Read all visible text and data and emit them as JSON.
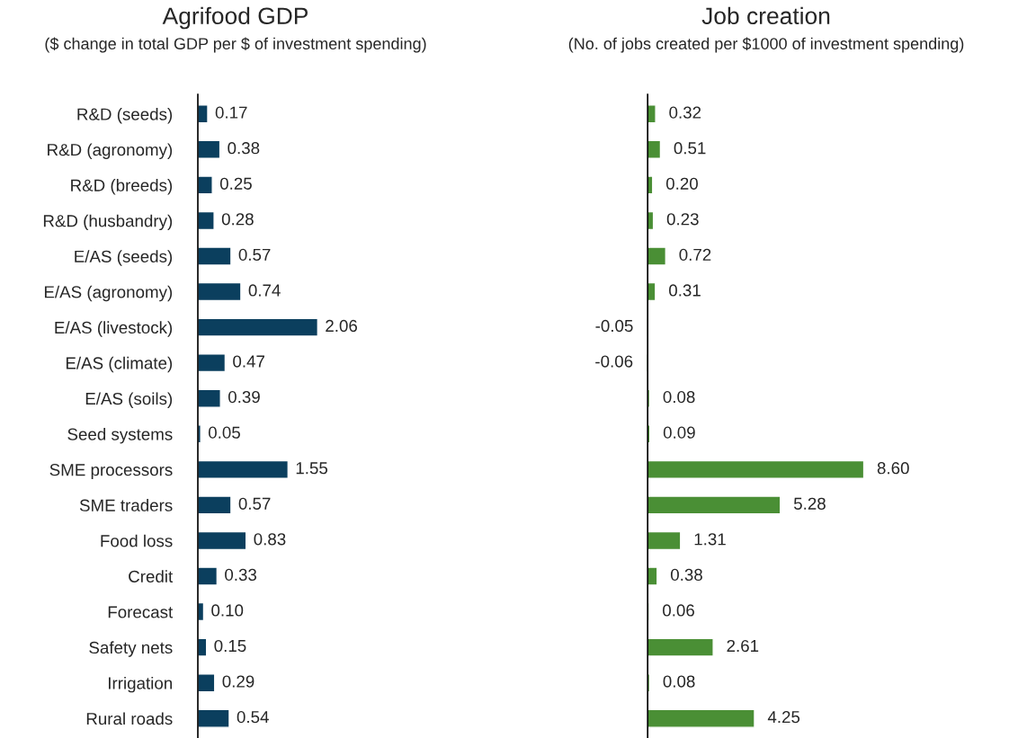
{
  "chart_data": [
    {
      "type": "bar",
      "orientation": "horizontal",
      "title": "Agrifood GDP",
      "subtitle": "($ change in total GDP per $ of investment spending)",
      "categories": [
        "R&D (seeds)",
        "R&D (agronomy)",
        "R&D (breeds)",
        "R&D (husbandry)",
        "E/AS (seeds)",
        "E/AS (agronomy)",
        "E/AS (livestock)",
        "E/AS (climate)",
        "E/AS (soils)",
        "Seed systems",
        "SME processors",
        "SME traders",
        "Food loss",
        "Credit",
        "Forecast",
        "Safety nets",
        "Irrigation",
        "Rural roads"
      ],
      "values": [
        0.17,
        0.38,
        0.25,
        0.28,
        0.57,
        0.74,
        2.06,
        0.47,
        0.39,
        0.05,
        1.55,
        0.57,
        0.83,
        0.33,
        0.1,
        0.15,
        0.29,
        0.54
      ],
      "value_labels": [
        "0.17",
        "0.38",
        "0.25",
        "0.28",
        "0.57",
        "0.74",
        "2.06",
        "0.47",
        "0.39",
        "0.05",
        "1.55",
        "0.57",
        "0.83",
        "0.33",
        "0.10",
        "0.15",
        "0.29",
        "0.54"
      ],
      "color": "#0b3f5e",
      "tick_labels": "y",
      "grid": false,
      "legend": false
    },
    {
      "type": "bar",
      "orientation": "horizontal",
      "title": "Job creation",
      "subtitle": "(No. of jobs created per $1000 of investment spending)",
      "categories": [
        null,
        null,
        null,
        null,
        null,
        null,
        null,
        null,
        null,
        null,
        null,
        null,
        null,
        null,
        null,
        null,
        null,
        null
      ],
      "values": [
        0.32,
        0.51,
        0.2,
        0.23,
        0.72,
        0.31,
        -0.05,
        -0.06,
        0.08,
        0.09,
        8.6,
        5.28,
        1.31,
        0.38,
        0.06,
        2.61,
        0.08,
        4.25
      ],
      "value_labels": [
        "0.32",
        "0.51",
        "0.20",
        "0.23",
        "0.72",
        "0.31",
        "-0.05",
        "-0.06",
        "0.08",
        "0.09",
        "8.60",
        "5.28",
        "1.31",
        "0.38",
        "0.06",
        "2.61",
        "0.08",
        "4.25"
      ],
      "color": "#4a8f35",
      "grid": false,
      "legend": false
    }
  ]
}
